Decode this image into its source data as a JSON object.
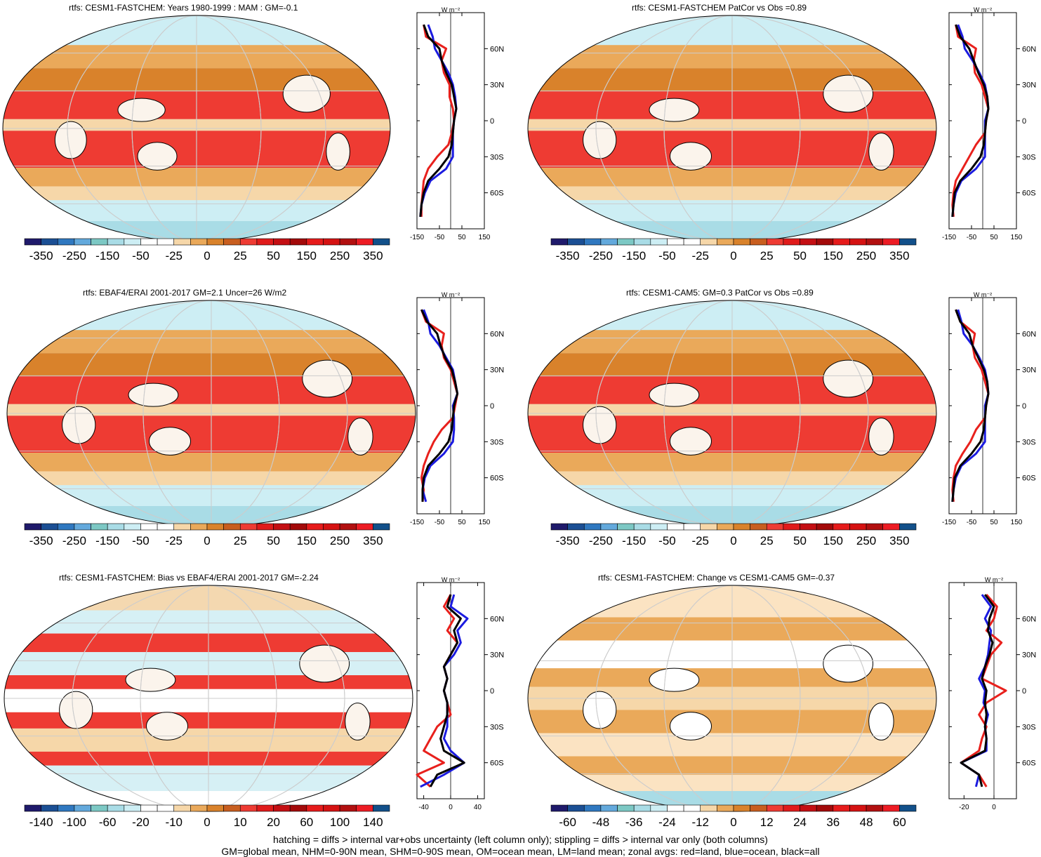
{
  "panels": [
    {
      "id": "p1",
      "title": "rtfs: CESM1-FASTCHEM: Years 1980-1999 : MAM : GM=-0.1",
      "colorbar": {
        "labels": [
          "-350",
          "-250",
          "-150",
          "-50",
          "-25",
          "0",
          "25",
          "50",
          "150",
          "250",
          "350"
        ]
      },
      "zonal": {
        "unit": "W m⁻²",
        "xticks": [
          "-150",
          "-50",
          "50",
          "150"
        ],
        "yticks": [
          "60N",
          "30N",
          "0",
          "30S",
          "60S"
        ]
      }
    },
    {
      "id": "p2",
      "title": "rtfs: CESM1-FASTCHEM PatCor vs Obs =0.89",
      "colorbar": {
        "labels": [
          "-350",
          "-250",
          "-150",
          "-50",
          "-25",
          "0",
          "25",
          "50",
          "150",
          "250",
          "350"
        ]
      },
      "zonal": {
        "unit": "W m⁻²",
        "xticks": [
          "-150",
          "-50",
          "50",
          "150"
        ],
        "yticks": [
          "60N",
          "30N",
          "0",
          "30S",
          "60S"
        ]
      }
    },
    {
      "id": "p3",
      "title": "rtfs: EBAF4/ERAI 2001-2017 GM=2.1 Uncer=26 W/m2",
      "colorbar": {
        "labels": [
          "-350",
          "-250",
          "-150",
          "-50",
          "-25",
          "0",
          "25",
          "50",
          "150",
          "250",
          "350"
        ]
      },
      "zonal": {
        "unit": "W m⁻²",
        "xticks": [
          "-150",
          "-50",
          "50",
          "150"
        ],
        "yticks": [
          "60N",
          "30N",
          "0",
          "30S",
          "60S"
        ]
      }
    },
    {
      "id": "p4",
      "title": "rtfs: CESM1-CAM5: GM=0.3 PatCor vs Obs =0.89",
      "colorbar": {
        "labels": [
          "-350",
          "-250",
          "-150",
          "-50",
          "-25",
          "0",
          "25",
          "50",
          "150",
          "250",
          "350"
        ]
      },
      "zonal": {
        "unit": "W m⁻²",
        "xticks": [
          "-150",
          "-50",
          "50",
          "150"
        ],
        "yticks": [
          "60N",
          "30N",
          "0",
          "30S",
          "60S"
        ]
      }
    },
    {
      "id": "p5",
      "title": "rtfs: CESM1-FASTCHEM: Bias vs EBAF4/ERAI 2001-2017 GM=-2.24",
      "colorbar": {
        "labels": [
          "-140",
          "-100",
          "-60",
          "-20",
          "-10",
          "0",
          "10",
          "20",
          "60",
          "100",
          "140"
        ]
      },
      "zonal": {
        "unit": "W m⁻²",
        "xticks": [
          "-40",
          "0",
          "40"
        ],
        "yticks": [
          "60N",
          "30N",
          "0",
          "30S",
          "60S"
        ]
      }
    },
    {
      "id": "p6",
      "title": "rtfs: CESM1-FASTCHEM: Change vs CESM1-CAM5 GM=-0.37",
      "colorbar": {
        "labels": [
          "-60",
          "-48",
          "-36",
          "-24",
          "-12",
          "0",
          "12",
          "24",
          "36",
          "48",
          "60"
        ]
      },
      "zonal": {
        "unit": "W m⁻²",
        "xticks": [
          "-20",
          "0"
        ],
        "yticks": [
          "60N",
          "30N",
          "0",
          "30S",
          "60S"
        ]
      }
    }
  ],
  "colors": {
    "palette": [
      "#1f1a6b",
      "#1b4f94",
      "#2f78c0",
      "#63a9dc",
      "#7cc8c4",
      "#a9dce6",
      "#cdeef4",
      "#ffffff",
      "#ffffff",
      "#f6d7a9",
      "#eaa95a",
      "#d9822b",
      "#c85e1f",
      "#ee3b33",
      "#e01b1b",
      "#c40f13",
      "#a30a0a",
      "#e61b1b",
      "#d51212",
      "#b21010",
      "#ed1c24",
      "#12508a"
    ],
    "land": "#e8201c",
    "ocean": "#1b1be0",
    "all": "#000000"
  },
  "footer": {
    "line1": "hatching = diffs > internal var+obs uncertainty (left column only); stippling = diffs > internal var only (both columns)",
    "line2": "GM=global mean, NHM=0-90N mean, SHM=0-90S mean, OM=ocean mean, LM=land mean; zonal avgs: red=land, blue=ocean, black=all"
  },
  "chart_data": [
    {
      "type": "heatmap",
      "title": "rtfs: CESM1-FASTCHEM: Years 1980-1999 : MAM : GM=-0.1",
      "colorbar_levels": [
        -350,
        -250,
        -150,
        -50,
        -25,
        0,
        25,
        50,
        150,
        250,
        350
      ],
      "zonal_lat": [
        80,
        70,
        60,
        50,
        40,
        30,
        20,
        10,
        0,
        -10,
        -20,
        -30,
        -40,
        -50,
        -60,
        -70,
        -80
      ],
      "zonal_land": [
        -120,
        -110,
        -20,
        -40,
        -30,
        -5,
        -5,
        10,
        15,
        5,
        -10,
        -60,
        -100,
        -120,
        -125,
        -130,
        -130
      ],
      "zonal_ocean": [
        -100,
        -80,
        -70,
        -40,
        -10,
        10,
        20,
        25,
        15,
        10,
        10,
        10,
        -20,
        -90,
        -115,
        -130,
        -135
      ],
      "zonal_all": [
        -120,
        -100,
        -50,
        -40,
        -20,
        5,
        15,
        25,
        15,
        10,
        5,
        -10,
        -50,
        -100,
        -120,
        -130,
        -135
      ]
    },
    {
      "type": "heatmap",
      "title": "rtfs: CESM1-FASTCHEM PatCor vs Obs =0.89",
      "colorbar_levels": [
        -350,
        -250,
        -150,
        -50,
        -25,
        0,
        25,
        50,
        150,
        250,
        350
      ],
      "zonal_lat": [
        80,
        70,
        60,
        50,
        40,
        30,
        20,
        10,
        0,
        -10,
        -20,
        -30,
        -40,
        -50,
        -60,
        -70,
        -80
      ],
      "zonal_land": [
        -120,
        -110,
        -30,
        -40,
        -35,
        -5,
        10,
        25,
        15,
        10,
        -30,
        -60,
        -90,
        -120,
        -130,
        -135,
        -130
      ],
      "zonal_ocean": [
        -110,
        -90,
        -80,
        -45,
        -15,
        10,
        20,
        25,
        10,
        10,
        10,
        10,
        -30,
        -95,
        -120,
        -130,
        -135
      ],
      "zonal_all": [
        -120,
        -100,
        -60,
        -40,
        -20,
        5,
        20,
        25,
        15,
        10,
        5,
        -10,
        -50,
        -100,
        -125,
        -130,
        -135
      ]
    },
    {
      "type": "heatmap",
      "title": "rtfs: EBAF4/ERAI 2001-2017 GM=2.1 Uncer=26 W/m2",
      "colorbar_levels": [
        -350,
        -250,
        -150,
        -50,
        -25,
        0,
        25,
        50,
        150,
        250,
        350
      ],
      "zonal_lat": [
        80,
        70,
        60,
        50,
        40,
        30,
        20,
        10,
        0,
        -10,
        -20,
        -30,
        -40,
        -50,
        -60,
        -70,
        -80
      ],
      "zonal_land": [
        -130,
        -110,
        -30,
        -40,
        -30,
        0,
        15,
        30,
        20,
        10,
        -40,
        -75,
        -100,
        -120,
        -130,
        -120,
        -125
      ],
      "zonal_ocean": [
        -120,
        -100,
        -90,
        -50,
        -20,
        10,
        20,
        30,
        10,
        15,
        15,
        10,
        -30,
        -90,
        -115,
        -125,
        -110
      ],
      "zonal_all": [
        -130,
        -105,
        -60,
        -45,
        -25,
        5,
        20,
        30,
        15,
        10,
        5,
        -10,
        -50,
        -100,
        -120,
        -125,
        -125
      ]
    },
    {
      "type": "heatmap",
      "title": "rtfs: CESM1-CAM5: GM=0.3 PatCor vs Obs =0.89",
      "colorbar_levels": [
        -350,
        -250,
        -150,
        -50,
        -25,
        0,
        25,
        50,
        150,
        250,
        350
      ],
      "zonal_lat": [
        80,
        70,
        60,
        50,
        40,
        30,
        20,
        10,
        0,
        -10,
        -20,
        -30,
        -40,
        -50,
        -60,
        -70,
        -80
      ],
      "zonal_land": [
        -120,
        -100,
        -35,
        -45,
        -35,
        -5,
        10,
        25,
        15,
        10,
        -30,
        -55,
        -90,
        -120,
        -130,
        -135,
        -130
      ],
      "zonal_ocean": [
        -110,
        -95,
        -85,
        -45,
        -15,
        10,
        20,
        25,
        10,
        10,
        10,
        10,
        -30,
        -95,
        -120,
        -130,
        -135
      ],
      "zonal_all": [
        -120,
        -100,
        -60,
        -45,
        -20,
        5,
        20,
        25,
        15,
        10,
        5,
        -10,
        -50,
        -100,
        -125,
        -130,
        -135
      ]
    },
    {
      "type": "heatmap",
      "title": "rtfs: CESM1-FASTCHEM: Bias vs EBAF4/ERAI 2001-2017 GM=-2.24",
      "colorbar_levels": [
        -140,
        -100,
        -60,
        -20,
        -10,
        0,
        10,
        20,
        60,
        100,
        140
      ],
      "zonal_lat": [
        80,
        70,
        60,
        50,
        40,
        30,
        20,
        10,
        0,
        -10,
        -20,
        -30,
        -40,
        -50,
        -60,
        -70,
        -80
      ],
      "zonal_land": [
        0,
        -10,
        5,
        -5,
        10,
        0,
        -10,
        -5,
        -10,
        -5,
        0,
        -20,
        -30,
        -40,
        -10,
        -50,
        -30
      ],
      "zonal_ocean": [
        5,
        0,
        25,
        10,
        15,
        5,
        -10,
        -5,
        -10,
        -5,
        -5,
        -5,
        -10,
        0,
        20,
        -10,
        -45
      ],
      "zonal_all": [
        0,
        -5,
        15,
        5,
        10,
        0,
        -10,
        -5,
        -10,
        -5,
        -5,
        -10,
        -15,
        -10,
        20,
        -20,
        -30
      ]
    },
    {
      "type": "heatmap",
      "title": "rtfs: CESM1-FASTCHEM: Change vs CESM1-CAM5 GM=-0.37",
      "colorbar_levels": [
        -60,
        -48,
        -36,
        -24,
        -12,
        0,
        12,
        24,
        36,
        48,
        60
      ],
      "zonal_lat": [
        80,
        70,
        60,
        50,
        40,
        30,
        20,
        10,
        0,
        -10,
        -20,
        -30,
        -40,
        -50,
        -60,
        -70,
        -80
      ],
      "zonal_land": [
        -5,
        2,
        0,
        -5,
        5,
        -2,
        -5,
        -8,
        8,
        -5,
        -10,
        -5,
        -8,
        -10,
        -22,
        -10,
        -5
      ],
      "zonal_ocean": [
        -8,
        -2,
        -6,
        -2,
        -3,
        -4,
        -6,
        -10,
        -6,
        -7,
        -4,
        -6,
        -5,
        -5,
        -22,
        -10,
        -12
      ],
      "zonal_all": [
        -6,
        0,
        -3,
        -4,
        -1,
        -3,
        -6,
        -8,
        -5,
        -6,
        -5,
        -6,
        -5,
        -6,
        -22,
        -10,
        -8
      ]
    }
  ]
}
